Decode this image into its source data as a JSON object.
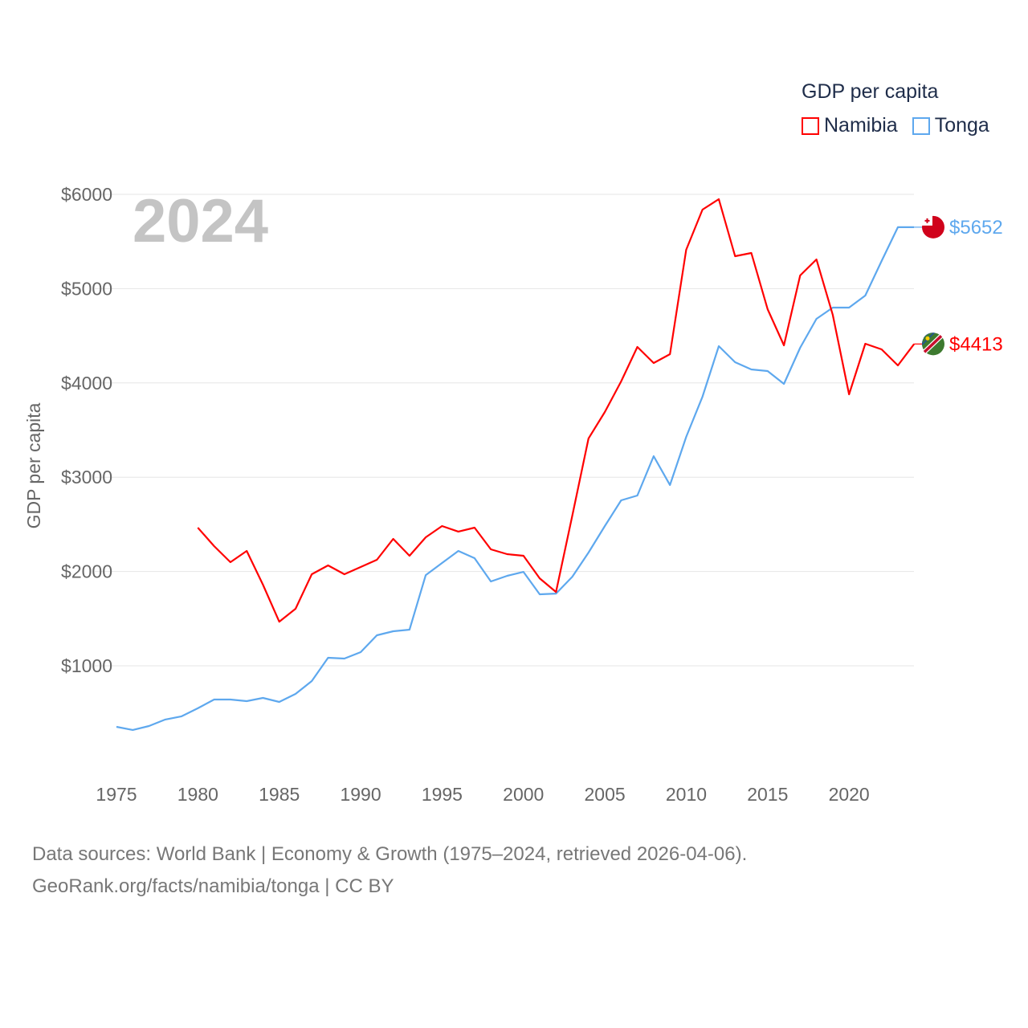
{
  "year_label": "2024",
  "legend": {
    "title": "GDP per capita",
    "items": [
      {
        "name": "Namibia",
        "color": "#ff0000"
      },
      {
        "name": "Tonga",
        "color": "#5ea8ee"
      }
    ]
  },
  "source": {
    "line1": "Data sources: World Bank | Economy & Growth (1975–2024, retrieved 2026-04-06).",
    "line2": "GeoRank.org/facts/namibia/tonga | CC BY"
  },
  "end_labels": {
    "tonga": "$5652",
    "namibia": "$4413"
  },
  "chart_data": {
    "type": "line",
    "title": "GDP per capita",
    "xlabel": "",
    "ylabel": "GDP per capita",
    "xlim": [
      1975,
      2024
    ],
    "ylim": [
      0,
      6000
    ],
    "x_ticks": [
      "1975",
      "1980",
      "1985",
      "1990",
      "1995",
      "2000",
      "2005",
      "2010",
      "2015",
      "2020"
    ],
    "y_ticks": [
      "$1000",
      "$2000",
      "$3000",
      "$4000",
      "$5000",
      "$6000"
    ],
    "grid": true,
    "legend_position": "top-right",
    "series": [
      {
        "name": "Tonga",
        "color": "#5ea8ee",
        "start_year": 1975,
        "values": [
          353,
          319,
          361,
          430,
          464,
          549,
          642,
          642,
          625,
          659,
          617,
          702,
          838,
          1085,
          1077,
          1145,
          1324,
          1366,
          1383,
          1962,
          2090,
          2218,
          2141,
          1894,
          1954,
          1996,
          1758,
          1766,
          1945,
          2201,
          2482,
          2755,
          2806,
          3223,
          2917,
          3428,
          3854,
          4390,
          4220,
          4143,
          4126,
          3990,
          4373,
          4680,
          4799,
          4799,
          4927,
          5293,
          5652,
          5652
        ]
      },
      {
        "name": "Namibia",
        "color": "#ff0000",
        "start_year": 1980,
        "values": [
          2465,
          2269,
          2099,
          2218,
          1860,
          1468,
          1605,
          1971,
          2065,
          1971,
          2048,
          2124,
          2346,
          2167,
          2363,
          2482,
          2423,
          2465,
          2235,
          2184,
          2167,
          1928,
          1783,
          2593,
          3411,
          3692,
          4016,
          4382,
          4211,
          4305,
          5412,
          5838,
          5949,
          5344,
          5378,
          4782,
          4399,
          5140,
          5310,
          4722,
          3879,
          4416,
          4356,
          4186,
          4413
        ]
      }
    ]
  }
}
